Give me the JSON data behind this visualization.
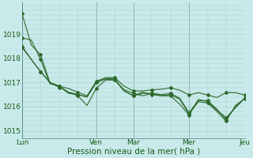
{
  "xlabel": "Pression niveau de la mer( hPa )",
  "bg_color": "#c8eaea",
  "grid_color": "#b0cccc",
  "line_color": "#2d6a2d",
  "ylim": [
    1014.7,
    1020.3
  ],
  "yticks": [
    1015,
    1016,
    1017,
    1018,
    1019
  ],
  "xtick_labels": [
    "Lun",
    "Ven",
    "Mar",
    "Mer",
    "Jeu"
  ],
  "xtick_positions": [
    0,
    8,
    12,
    18,
    24
  ],
  "series": [
    [
      1019.85,
      1018.55,
      1018.15,
      1017.0,
      1016.85,
      1016.75,
      1016.6,
      1016.45,
      1017.05,
      1017.2,
      1017.2,
      1016.85,
      1016.65,
      1016.65,
      1016.7,
      1016.72,
      1016.78,
      1016.68,
      1016.48,
      1016.58,
      1016.48,
      1016.38,
      1016.58,
      1016.58,
      1016.48
    ],
    [
      1018.85,
      1018.75,
      1017.95,
      1016.95,
      1016.85,
      1016.6,
      1016.45,
      1016.05,
      1016.75,
      1017.1,
      1017.1,
      1016.7,
      1016.55,
      1016.45,
      1016.55,
      1016.45,
      1016.45,
      1016.1,
      1015.65,
      1016.3,
      1016.2,
      1015.85,
      1015.55,
      1015.95,
      1016.35
    ],
    [
      1018.5,
      1017.95,
      1017.45,
      1017.0,
      1016.85,
      1016.55,
      1016.5,
      1016.4,
      1017.0,
      1017.15,
      1017.1,
      1016.65,
      1016.45,
      1016.55,
      1016.55,
      1016.5,
      1016.55,
      1016.35,
      1015.75,
      1016.25,
      1016.25,
      1015.9,
      1015.45,
      1016.0,
      1016.35
    ],
    [
      1018.45,
      1017.95,
      1017.45,
      1017.0,
      1016.8,
      1016.6,
      1016.5,
      1016.4,
      1017.0,
      1017.15,
      1017.15,
      1016.65,
      1016.45,
      1016.6,
      1016.5,
      1016.45,
      1016.5,
      1016.3,
      1015.7,
      1016.2,
      1016.15,
      1015.8,
      1015.4,
      1016.05,
      1016.33
    ]
  ],
  "n_points": 25,
  "marker_step": 2,
  "vline_color": "#6a9a9a",
  "vline_positions": [
    0,
    8,
    12,
    18,
    24
  ]
}
